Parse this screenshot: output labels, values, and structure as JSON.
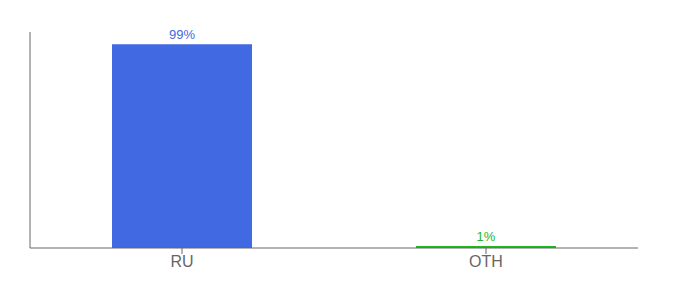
{
  "chart_data": {
    "type": "bar",
    "categories": [
      "RU",
      "OTH"
    ],
    "values": [
      99,
      1
    ],
    "value_labels": [
      "99%",
      "1%"
    ],
    "colors": [
      "#4169e1",
      "#22b822"
    ],
    "ylim": [
      0,
      105
    ],
    "grid": false,
    "data_labels": true,
    "tick_labels": "x"
  }
}
